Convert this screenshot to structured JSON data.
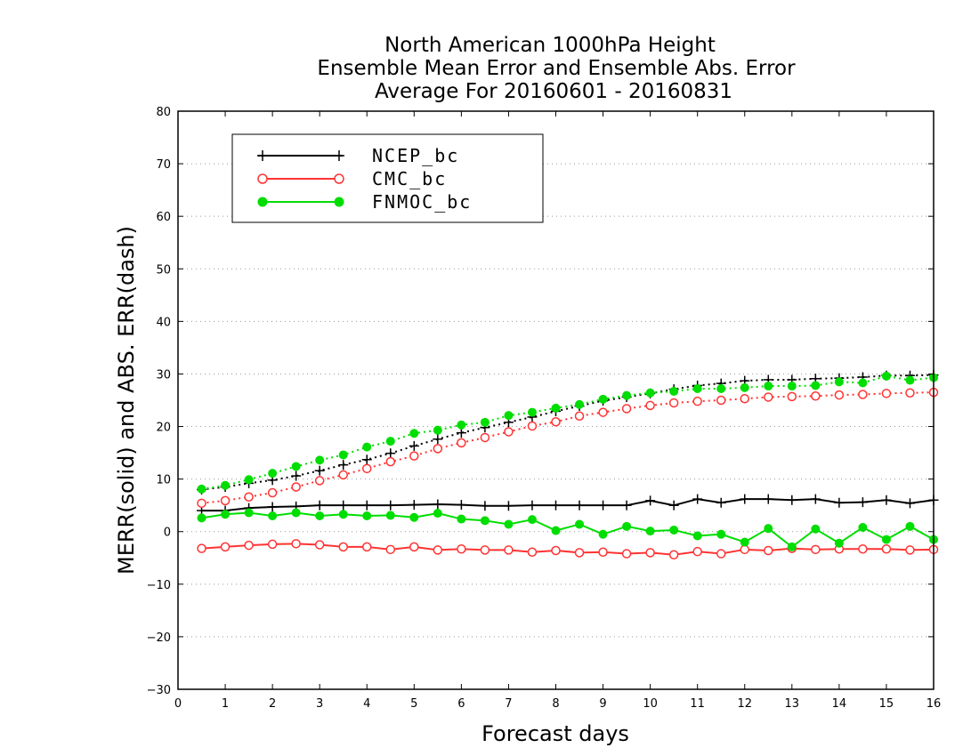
{
  "chart_data": {
    "type": "line",
    "title": [
      "North American 1000hPa Height",
      "Ensemble Mean Error and Ensemble Abs. Error",
      "Average For 20160601 - 20160831"
    ],
    "xlabel": "Forecast days",
    "ylabel": "MERR(solid) and ABS. ERR(dash)",
    "xlim": [
      0,
      16
    ],
    "ylim": [
      -30,
      80
    ],
    "xticks": [
      "0",
      "1",
      "2",
      "3",
      "4",
      "5",
      "6",
      "7",
      "8",
      "9",
      "10",
      "11",
      "12",
      "13",
      "14",
      "15",
      "16"
    ],
    "yticks": [
      "−30",
      "−20",
      "−10",
      "0",
      "10",
      "20",
      "30",
      "40",
      "50",
      "60",
      "70",
      "80"
    ],
    "grid": true,
    "legend_position": "top-left",
    "x": [
      0.5,
      1,
      1.5,
      2,
      2.5,
      3,
      3.5,
      4,
      4.5,
      5,
      5.5,
      6,
      6.5,
      7,
      7.5,
      8,
      8.5,
      9,
      9.5,
      10,
      10.5,
      11,
      11.5,
      12,
      12.5,
      13,
      13.5,
      14,
      14.5,
      15,
      15.5,
      16
    ],
    "series": [
      {
        "name": "NCEP_bc",
        "color": "#000000",
        "marker": "plus",
        "merr": [
          4.0,
          4.0,
          4.5,
          4.7,
          4.8,
          5.0,
          5.0,
          5.0,
          5.0,
          5.1,
          5.2,
          5.1,
          4.9,
          4.9,
          5.0,
          5.0,
          5.0,
          5.0,
          5.0,
          5.9,
          5.0,
          6.2,
          5.5,
          6.2,
          6.2,
          6.0,
          6.2,
          5.5,
          5.6,
          6.0,
          5.4,
          6.0
        ],
        "abs_err": [
          8.0,
          8.5,
          9.2,
          9.8,
          10.6,
          11.6,
          12.7,
          13.7,
          14.9,
          16.3,
          17.6,
          18.8,
          19.8,
          20.8,
          21.8,
          22.9,
          23.9,
          24.9,
          25.6,
          26.3,
          27.1,
          27.8,
          28.2,
          28.7,
          28.9,
          28.9,
          29.1,
          29.2,
          29.4,
          29.7,
          29.7,
          29.8
        ]
      },
      {
        "name": "CMC_bc",
        "color": "#ff3333",
        "marker": "open-circle",
        "merr": [
          -3.2,
          -2.9,
          -2.6,
          -2.4,
          -2.3,
          -2.5,
          -2.9,
          -2.9,
          -3.4,
          -2.9,
          -3.5,
          -3.3,
          -3.5,
          -3.5,
          -3.9,
          -3.6,
          -4.0,
          -3.9,
          -4.2,
          -4.0,
          -4.4,
          -3.8,
          -4.2,
          -3.4,
          -3.6,
          -3.2,
          -3.4,
          -3.3,
          -3.3,
          -3.3,
          -3.5,
          -3.4
        ],
        "abs_err": [
          5.4,
          5.9,
          6.6,
          7.4,
          8.5,
          9.7,
          10.8,
          12.0,
          13.3,
          14.4,
          15.8,
          16.9,
          17.9,
          19.0,
          20.1,
          20.9,
          22.0,
          22.7,
          23.4,
          24.0,
          24.5,
          24.8,
          25.0,
          25.3,
          25.6,
          25.7,
          25.8,
          26.0,
          26.1,
          26.3,
          26.4,
          26.5
        ]
      },
      {
        "name": "FNMOC_bc",
        "color": "#00dd00",
        "marker": "filled-circle",
        "merr": [
          2.6,
          3.3,
          3.6,
          3.0,
          3.6,
          3.0,
          3.3,
          3.0,
          3.1,
          2.7,
          3.5,
          2.4,
          2.1,
          1.4,
          2.3,
          0.2,
          1.4,
          -0.5,
          1.0,
          0.1,
          0.3,
          -0.8,
          -0.5,
          -2.0,
          0.6,
          -2.9,
          0.5,
          -2.2,
          0.8,
          -1.5,
          1.0,
          -1.5
        ],
        "abs_err": [
          8.1,
          8.8,
          9.9,
          11.1,
          12.4,
          13.6,
          14.6,
          16.1,
          17.2,
          18.7,
          19.3,
          20.3,
          20.8,
          22.1,
          22.7,
          23.5,
          24.2,
          25.2,
          25.9,
          26.4,
          26.7,
          27.2,
          27.2,
          27.4,
          27.7,
          27.7,
          27.8,
          28.5,
          28.3,
          29.6,
          28.8,
          29.3
        ]
      }
    ]
  }
}
